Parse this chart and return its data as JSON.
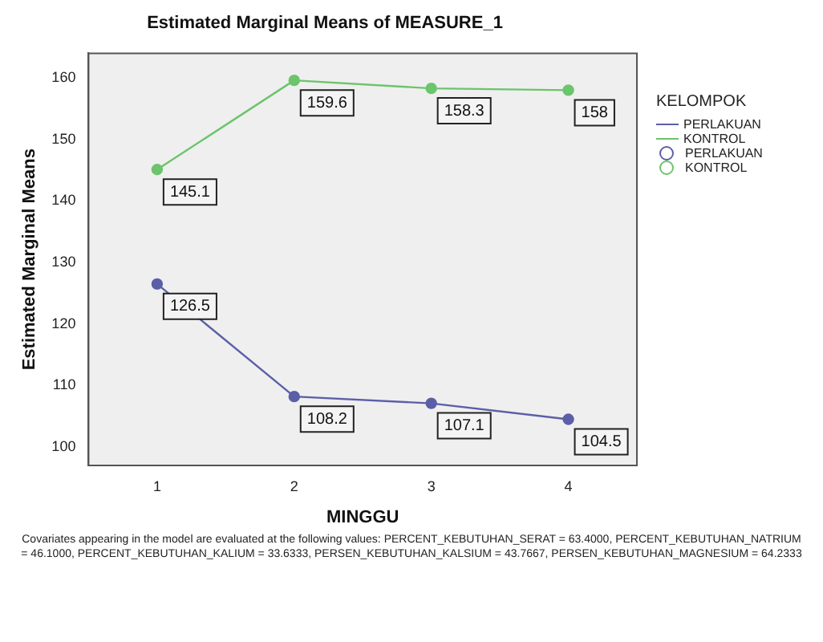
{
  "chart_data": {
    "type": "line",
    "title": "Estimated Marginal Means of MEASURE_1",
    "xlabel": "MINGGU",
    "ylabel": "Estimated Marginal Means",
    "legend_title": "KELOMPOK",
    "categories": [
      "1",
      "2",
      "3",
      "4"
    ],
    "series": [
      {
        "name": "PERLAKUAN",
        "color": "#5b5fa8",
        "values": [
          126.5,
          108.2,
          107.1,
          104.5
        ]
      },
      {
        "name": "KONTROL",
        "color": "#6cc46c",
        "values": [
          145.1,
          159.6,
          158.3,
          158
        ]
      }
    ],
    "ylim": [
      97,
      164
    ],
    "yticks": [
      100,
      110,
      120,
      130,
      140,
      150,
      160
    ],
    "grid": false,
    "legend": "top right",
    "marker": "circle",
    "line_style": "solid",
    "data_labels": true,
    "annotations": [
      "Covariates appearing in the model are evaluated at the following values: PERCENT_KEBUTUHAN_SERAT = 63.4000, PERCENT_KEBUTUHAN_NATRIUM = 46.1000, PERCENT_KEBUTUHAN_KALIUM = 33.6333, PERSEN_KEBUTUHAN_KALSIUM = 43.7667, PERSEN_KEBUTUHAN_MAGNESIUM = 64.2333"
    ]
  }
}
